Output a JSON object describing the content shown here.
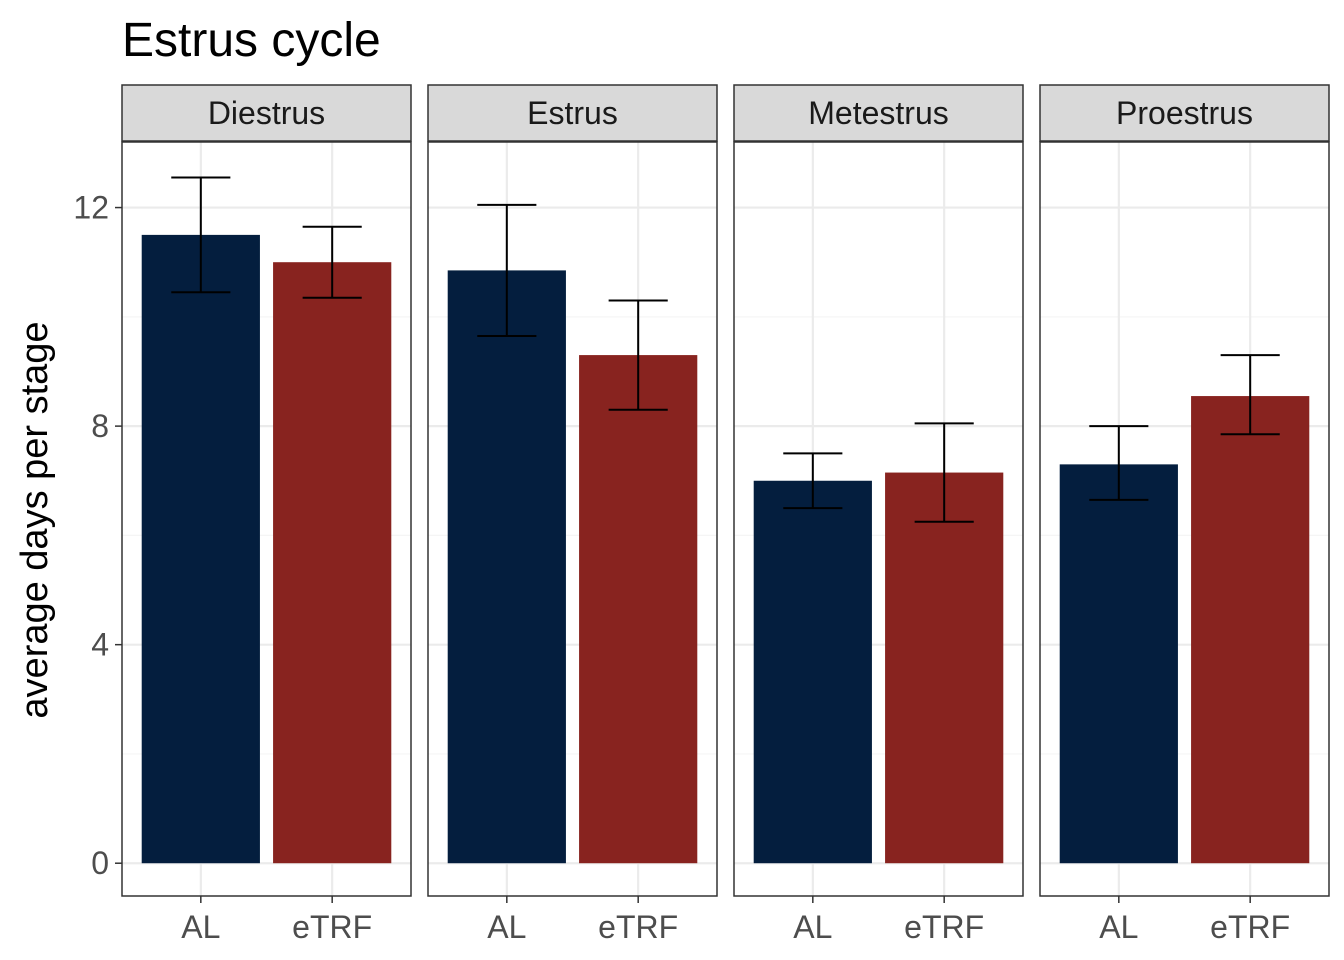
{
  "chart_data": {
    "type": "bar",
    "title": "Estrus cycle",
    "xlabel": "",
    "ylabel": "average days per stage",
    "ylim": [
      -0.6,
      13.2
    ],
    "yticks": [
      0,
      4,
      8,
      12
    ],
    "categories": [
      "AL",
      "eTRF"
    ],
    "facets": [
      {
        "name": "Diestrus",
        "bars": [
          {
            "category": "AL",
            "value": 11.5,
            "err_low": 10.45,
            "err_high": 12.55
          },
          {
            "category": "eTRF",
            "value": 11.0,
            "err_low": 10.35,
            "err_high": 11.65
          }
        ]
      },
      {
        "name": "Estrus",
        "bars": [
          {
            "category": "AL",
            "value": 10.85,
            "err_low": 9.65,
            "err_high": 12.05
          },
          {
            "category": "eTRF",
            "value": 9.3,
            "err_low": 8.3,
            "err_high": 10.3
          }
        ]
      },
      {
        "name": "Metestrus",
        "bars": [
          {
            "category": "AL",
            "value": 7.0,
            "err_low": 6.5,
            "err_high": 7.5
          },
          {
            "category": "eTRF",
            "value": 7.15,
            "err_low": 6.25,
            "err_high": 8.05
          }
        ]
      },
      {
        "name": "Proestrus",
        "bars": [
          {
            "category": "AL",
            "value": 7.3,
            "err_low": 6.65,
            "err_high": 8.0
          },
          {
            "category": "eTRF",
            "value": 8.55,
            "err_low": 7.85,
            "err_high": 9.3
          }
        ]
      }
    ],
    "colors": {
      "AL": "#041e3e",
      "eTRF": "#88231f",
      "strip_fill": "#d9d9d9",
      "panel_border": "#333333",
      "grid_major": "#ebebeb",
      "grid_minor": "#f5f5f5",
      "error_bar": "#000000"
    },
    "grid": true,
    "legend": "none"
  }
}
